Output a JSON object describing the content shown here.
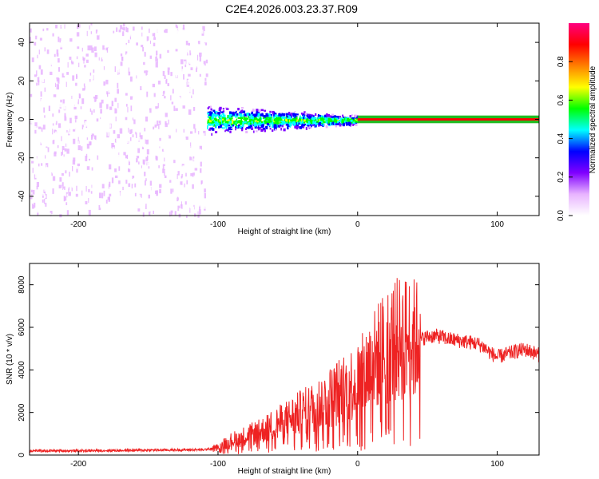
{
  "title": "C2E4.2026.003.23.37.R09",
  "colors": {
    "snr_line": "#ee2222",
    "doppler_band": "#22bb22"
  },
  "chart_data": [
    {
      "type": "heatmap",
      "xlabel": "Height of straight line (km)",
      "ylabel": "Frequency (Hz)",
      "xlim": [
        -235,
        130
      ],
      "ylim": [
        -50,
        50
      ],
      "x_ticks": [
        -200,
        -100,
        0,
        100
      ],
      "y_ticks": [
        -40,
        -20,
        0,
        20,
        40
      ],
      "grid": false,
      "colorbar": {
        "label": "Normalized spectral amplitude",
        "range": [
          0,
          1
        ],
        "ticks": [
          0.0,
          0.2,
          0.4,
          0.6,
          0.8
        ],
        "tick_labels": [
          "0.0",
          "0.2",
          "0.4",
          "0.6",
          "0.8"
        ],
        "colormap": [
          "#ffffff",
          "#e8b4ff",
          "#8000ff",
          "#0000ff",
          "#00ffff",
          "#00ff00",
          "#ffff00",
          "#ff8000",
          "#ff0000",
          "#ff0080"
        ]
      },
      "regions": [
        {
          "x_range": [
            -235,
            -108
          ],
          "freq_range": [
            -50,
            50
          ],
          "typical_amplitude": 0.12
        },
        {
          "x_range": [
            -108,
            0
          ],
          "freq_center": 0,
          "freq_halfwidth": 8,
          "typical_amplitude": 0.4
        },
        {
          "x_range": [
            0,
            130
          ],
          "freq_center": 0,
          "freq_halfwidth": 1,
          "typical_amplitude": 0.95
        }
      ]
    },
    {
      "type": "line",
      "xlabel": "Height of straight line (km)",
      "ylabel": "SNR (10 * v/v)",
      "xlim": [
        -235,
        130
      ],
      "ylim": [
        0,
        9000
      ],
      "x_ticks": [
        -200,
        -100,
        0,
        100
      ],
      "y_ticks": [
        0,
        2000,
        4000,
        6000,
        8000
      ],
      "grid": false,
      "series": [
        {
          "x": [
            -235,
            -200,
            -150,
            -110,
            -100,
            -95,
            -90,
            -85,
            -80,
            -75,
            -70,
            -65,
            -60,
            -55,
            -50,
            -45,
            -40,
            -35,
            -30,
            -25,
            -20,
            -15,
            -10,
            -5,
            0,
            5,
            8,
            10,
            15,
            20,
            25,
            30,
            35,
            40,
            45,
            50,
            55,
            60,
            65,
            70,
            75,
            80,
            85,
            90,
            95,
            100,
            105,
            110,
            115,
            120,
            125,
            130
          ],
          "y": [
            200,
            200,
            230,
            250,
            350,
            550,
            700,
            800,
            900,
            1000,
            1100,
            1250,
            1400,
            1550,
            1700,
            1850,
            2000,
            2150,
            2300,
            2500,
            2700,
            2900,
            3100,
            3300,
            3500,
            3800,
            4200,
            4300,
            4700,
            5100,
            5300,
            5450,
            5500,
            5400,
            5450,
            5550,
            5600,
            5550,
            5450,
            5400,
            5350,
            5300,
            5250,
            5100,
            4800,
            4600,
            4700,
            4800,
            4900,
            4950,
            4850,
            4700
          ]
        }
      ]
    }
  ]
}
